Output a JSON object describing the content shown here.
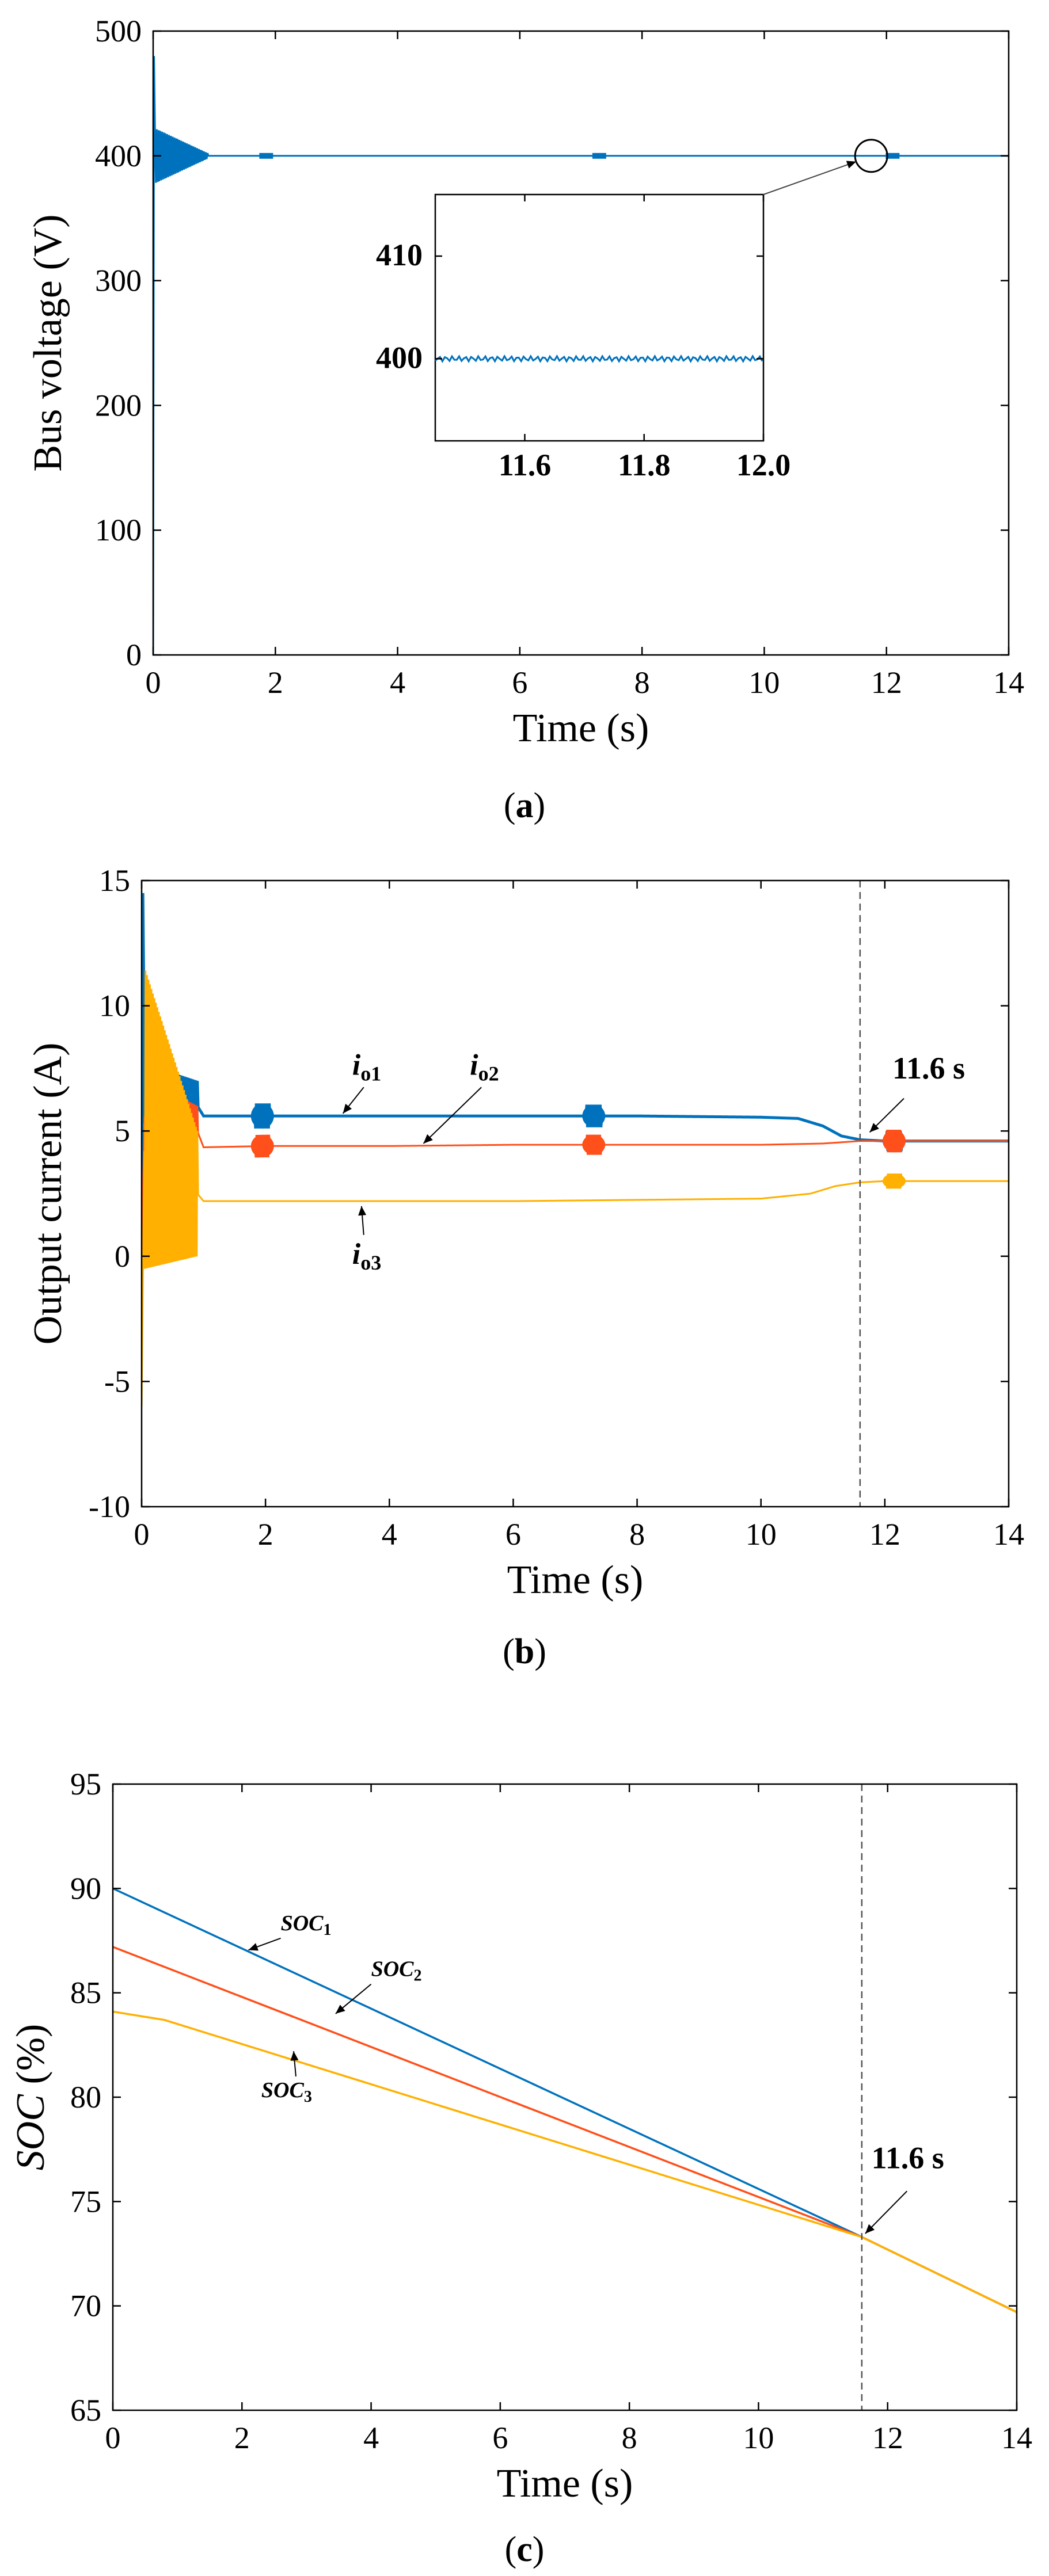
{
  "colors": {
    "blue": "#0072BD",
    "red": "#FF4F1A",
    "yellow": "#FFB000",
    "axis": "#000000",
    "guide": "#555555"
  },
  "chart_data": [
    {
      "id": "a",
      "panel_label": "a",
      "type": "line",
      "title": "",
      "xlabel": "Time (s)",
      "ylabel": "Bus voltage (V)",
      "xlim": [
        0,
        14
      ],
      "ylim": [
        0,
        500
      ],
      "xticks": [
        0,
        2,
        4,
        6,
        8,
        10,
        12,
        14
      ],
      "yticks": [
        0,
        100,
        200,
        300,
        400,
        500
      ],
      "grid": false,
      "series": [
        {
          "name": "Bus voltage",
          "color": "#0072BD",
          "x": [
            0,
            0.015,
            0.03,
            0.1,
            0.2,
            0.4,
            0.6,
            0.8,
            1.0,
            1.5,
            2.0,
            4.0,
            6.0,
            7.3,
            8.0,
            10.0,
            12.0,
            14.0
          ],
          "y": [
            0,
            480,
            400,
            400,
            400,
            400,
            400,
            400,
            400,
            400,
            400,
            400,
            400,
            400,
            400,
            400,
            400,
            400
          ],
          "oscillation": {
            "x_start": 0.03,
            "x_end": 0.9,
            "amp_start": 22,
            "amp_end": 2
          }
        }
      ],
      "inset": {
        "xlim": [
          11.45,
          12.0
        ],
        "ylim": [
          392,
          416
        ],
        "xticks": [
          11.6,
          11.8,
          12.0
        ],
        "xtick_labels": [
          "11.6",
          "11.8",
          "12.0"
        ],
        "yticks": [
          400,
          410
        ],
        "ytick_labels": [
          "400",
          "410"
        ],
        "series_y": 400,
        "callout": {
          "x": 11.75,
          "y": 400
        }
      }
    },
    {
      "id": "b",
      "panel_label": "b",
      "type": "line",
      "title": "",
      "xlabel": "Time (s)",
      "ylabel": "Output current (A)",
      "xlim": [
        0,
        14
      ],
      "ylim": [
        -10,
        15
      ],
      "xticks": [
        0,
        2,
        4,
        6,
        8,
        10,
        12,
        14
      ],
      "yticks": [
        -10,
        -5,
        0,
        5,
        10,
        15
      ],
      "grid": false,
      "series": [
        {
          "name": "io1",
          "color": "#0072BD",
          "x": [
            0,
            0.02,
            0.05,
            0.9,
            1.0,
            2.0,
            4.0,
            6.0,
            8.0,
            10.0,
            10.6,
            11.0,
            11.3,
            11.6,
            12.0,
            14.0
          ],
          "y": [
            0,
            14.5,
            6.5,
            6.0,
            5.6,
            5.6,
            5.6,
            5.6,
            5.6,
            5.55,
            5.5,
            5.2,
            4.8,
            4.65,
            4.6,
            4.6
          ],
          "oscillation": {
            "x_start": 0.05,
            "x_end": 0.9,
            "amp_start": 1.2,
            "amp_end": 1.0
          }
        },
        {
          "name": "io2",
          "color": "#FF4F1A",
          "x": [
            0,
            0.05,
            0.9,
            1.0,
            2.0,
            4.0,
            6.0,
            8.0,
            10.0,
            11.0,
            11.6,
            12.0,
            14.0
          ],
          "y": [
            0,
            5.8,
            5.0,
            4.35,
            4.4,
            4.4,
            4.45,
            4.45,
            4.45,
            4.5,
            4.6,
            4.6,
            4.6
          ],
          "oscillation": {
            "x_start": 0.05,
            "x_end": 0.9,
            "amp_start": 1.3,
            "amp_end": 1.0
          }
        },
        {
          "name": "io3",
          "color": "#FFB000",
          "x": [
            0,
            0.02,
            0.05,
            0.9,
            1.0,
            2.0,
            4.0,
            6.0,
            8.0,
            10.0,
            10.8,
            11.2,
            11.6,
            12.0,
            14.0
          ],
          "y": [
            -6.0,
            -1.0,
            5.5,
            2.5,
            2.2,
            2.2,
            2.2,
            2.2,
            2.25,
            2.3,
            2.5,
            2.8,
            2.95,
            3.0,
            3.0
          ],
          "oscillation": {
            "x_start": 0.05,
            "x_end": 0.9,
            "amp_start": 6.0,
            "amp_end": 2.5
          }
        }
      ],
      "bursts": [
        {
          "x": 1.95,
          "series": "io1",
          "amp": 0.5
        },
        {
          "x": 7.3,
          "series": "io1",
          "amp": 0.45
        },
        {
          "x": 12.15,
          "series": "io1",
          "amp": 0.4
        },
        {
          "x": 1.95,
          "series": "io2",
          "amp": 0.45
        },
        {
          "x": 7.3,
          "series": "io2",
          "amp": 0.4
        },
        {
          "x": 12.15,
          "series": "io2",
          "amp": 0.45
        },
        {
          "x": 12.15,
          "series": "io3",
          "amp": 0.3
        }
      ],
      "marker_line": {
        "x": 11.6,
        "label": "11.6 s"
      },
      "annotations": [
        {
          "main": "i",
          "sub": "o1",
          "label_x": 3.4,
          "label_y": 7.25,
          "arrow_x": 3.25,
          "arrow_y": 5.7
        },
        {
          "main": "i",
          "sub": "o2",
          "label_x": 5.3,
          "label_y": 7.25,
          "arrow_x": 4.55,
          "arrow_y": 4.5
        },
        {
          "main": "i",
          "sub": "o3",
          "label_x": 3.4,
          "label_y": -0.3,
          "arrow_x": 3.55,
          "arrow_y": 2.0
        }
      ]
    },
    {
      "id": "c",
      "panel_label": "c",
      "type": "line",
      "title": "",
      "xlabel": "Time (s)",
      "ylabel_main": "SOC",
      "ylabel_unit": " (%)",
      "xlim": [
        0,
        14
      ],
      "ylim": [
        65,
        95
      ],
      "xticks": [
        0,
        2,
        4,
        6,
        8,
        10,
        12,
        14
      ],
      "yticks": [
        65,
        70,
        75,
        80,
        85,
        90,
        95
      ],
      "grid": false,
      "series": [
        {
          "name": "SOC1",
          "color": "#0072BD",
          "x": [
            0,
            11.6,
            14
          ],
          "y": [
            90,
            73.3,
            69.7
          ]
        },
        {
          "name": "SOC2",
          "color": "#FF4F1A",
          "x": [
            0,
            11.6,
            14
          ],
          "y": [
            87.2,
            73.3,
            69.7
          ]
        },
        {
          "name": "SOC3",
          "color": "#FFB000",
          "x": [
            0,
            0.8,
            11.6,
            14
          ],
          "y": [
            84.1,
            83.7,
            73.3,
            69.7
          ]
        }
      ],
      "marker_line": {
        "x": 11.6,
        "label": "11.6 s"
      },
      "annotations": [
        {
          "main": "SOC",
          "sub": "1",
          "label_x": 2.6,
          "label_y": 88.0,
          "arrow_x": 2.1,
          "arrow_y": 87.05
        },
        {
          "main": "SOC",
          "sub": "2",
          "label_x": 4.0,
          "label_y": 85.8,
          "arrow_x": 3.45,
          "arrow_y": 84.0
        },
        {
          "main": "SOC",
          "sub": "3",
          "label_x": 2.3,
          "label_y": 80.0,
          "arrow_x": 2.8,
          "arrow_y": 82.2
        }
      ]
    }
  ]
}
